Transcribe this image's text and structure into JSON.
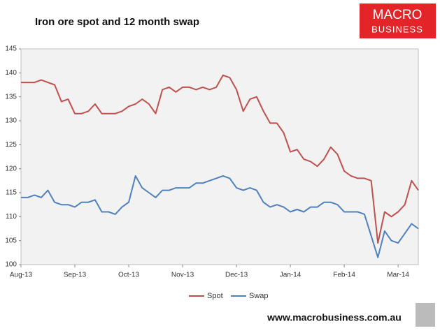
{
  "chart_data": {
    "type": "line",
    "title": "Iron ore spot and 12 month swap",
    "categories": [
      "Aug-13",
      null,
      null,
      null,
      null,
      null,
      null,
      null,
      "Sep-13",
      null,
      null,
      null,
      null,
      null,
      null,
      null,
      "Oct-13",
      null,
      null,
      null,
      null,
      null,
      null,
      null,
      "Nov-13",
      null,
      null,
      null,
      null,
      null,
      null,
      null,
      "Dec-13",
      null,
      null,
      null,
      null,
      null,
      null,
      null,
      "Jan-14",
      null,
      null,
      null,
      null,
      null,
      null,
      null,
      "Feb-14",
      null,
      null,
      null,
      null,
      null,
      null,
      null,
      "Mar-14",
      null,
      null,
      null
    ],
    "series": [
      {
        "name": "Spot",
        "color": "#c0504d",
        "values": [
          138,
          138,
          138,
          138.5,
          138,
          137.5,
          134,
          134.5,
          131.5,
          131.5,
          132,
          133.5,
          131.5,
          131.5,
          131.5,
          132,
          133,
          133.5,
          134.5,
          133.5,
          131.5,
          136.5,
          137,
          136,
          137,
          137,
          136.5,
          137,
          136.5,
          137,
          139.5,
          139,
          136.5,
          132,
          134.5,
          135,
          132,
          129.5,
          129.5,
          127.5,
          123.5,
          124,
          122,
          121.5,
          120.5,
          122,
          124.5,
          123,
          119.5,
          118.5,
          118,
          118,
          117.5,
          104.5,
          111,
          110,
          111,
          112.5,
          117.5,
          115.5
        ]
      },
      {
        "name": "Swap",
        "color": "#4f81bd",
        "values": [
          114,
          114,
          114.5,
          114,
          115.5,
          113,
          112.5,
          112.5,
          112,
          113,
          113,
          113.5,
          111,
          111,
          110.5,
          112,
          113,
          118.5,
          116,
          115,
          114,
          115.5,
          115.5,
          116,
          116,
          116,
          117,
          117,
          117.5,
          118,
          118.5,
          118,
          116,
          115.5,
          116,
          115.5,
          113,
          112,
          112.5,
          112,
          111,
          111.5,
          111,
          112,
          112,
          113,
          113,
          112.5,
          111,
          111,
          111,
          110.5,
          106,
          101.5,
          107,
          105,
          104.5,
          106.5,
          108.5,
          107.5
        ]
      }
    ],
    "ylim": [
      100,
      145
    ],
    "yticks": [
      100,
      105,
      110,
      115,
      120,
      125,
      130,
      135,
      140,
      145
    ],
    "grid": false,
    "legend": "bottom"
  },
  "logo": {
    "line1": "MACRO",
    "line2": "BUSINESS"
  },
  "footer": "www.macrobusiness.com.au"
}
